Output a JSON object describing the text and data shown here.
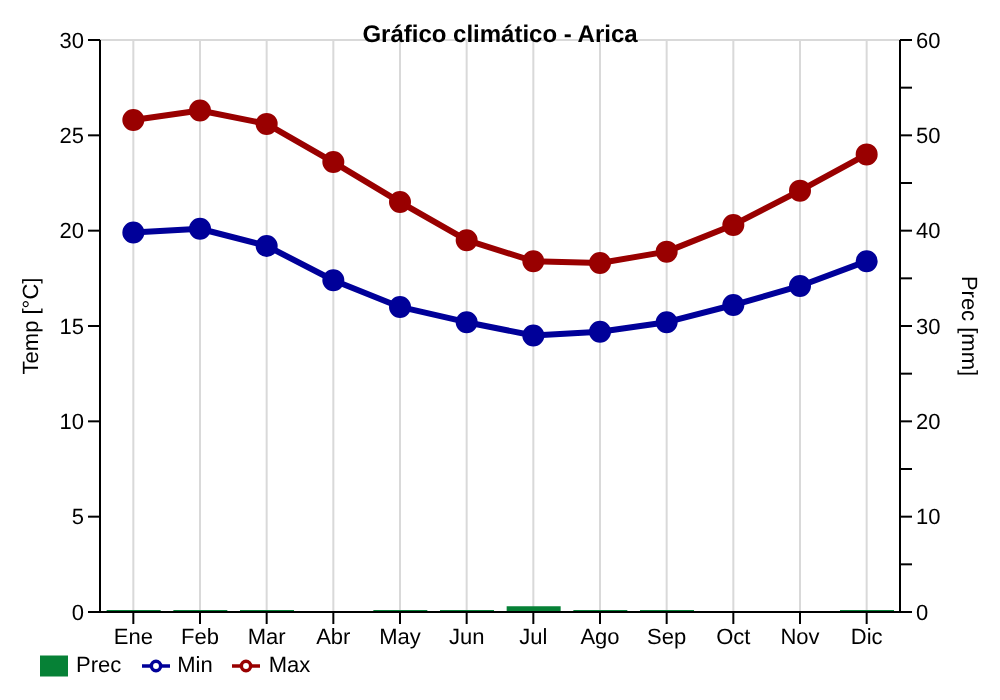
{
  "chart_data": {
    "type": "line",
    "title": "Gráfico climático - Arica",
    "xlabel": null,
    "ylabel": "Temp [°C]",
    "y2label": "Prec [mm]",
    "categories": [
      "Ene",
      "Feb",
      "Mar",
      "Abr",
      "May",
      "Jun",
      "Jul",
      "Ago",
      "Sep",
      "Oct",
      "Nov",
      "Dic"
    ],
    "series": [
      {
        "name": "Prec",
        "type": "bar",
        "axis": "y2",
        "color": "#068136",
        "values": [
          0.2,
          0.2,
          0.2,
          0,
          0.2,
          0.2,
          0.6,
          0.2,
          0.2,
          0,
          0,
          0.2
        ]
      },
      {
        "name": "Min",
        "color": "#000099",
        "values": [
          19.9,
          20.1,
          19.2,
          17.4,
          16.0,
          15.2,
          14.5,
          14.7,
          15.2,
          16.1,
          17.1,
          18.4
        ]
      },
      {
        "name": "Max",
        "color": "#990000",
        "values": [
          25.8,
          26.3,
          25.6,
          23.6,
          21.5,
          19.5,
          18.4,
          18.3,
          18.9,
          20.3,
          22.1,
          24.0
        ]
      }
    ],
    "ylim": [
      0,
      30
    ],
    "yticks": [
      0,
      5,
      10,
      15,
      20,
      25,
      30
    ],
    "y2lim": [
      0,
      60
    ],
    "y2ticks": [
      0,
      {
        "value": 5,
        "label": null
      },
      10,
      {
        "value": 15,
        "label": null
      },
      20,
      {
        "value": 25,
        "label": null
      },
      30,
      {
        "value": 35,
        "label": null
      },
      40,
      {
        "value": 45,
        "label": null
      },
      50,
      {
        "value": 55,
        "label": null
      },
      60
    ],
    "grid": true,
    "legend": "bottom left",
    "marker": "circle",
    "line_style": "solid"
  }
}
